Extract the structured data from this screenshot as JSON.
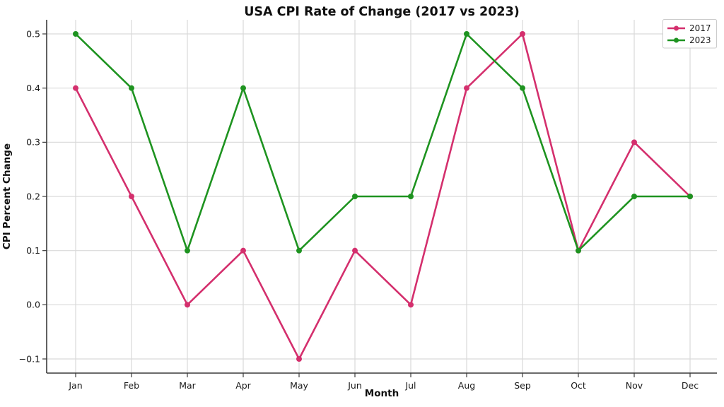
{
  "chart_data": {
    "type": "line",
    "title": "USA CPI Rate of Change (2017 vs 2023)",
    "xlabel": "Month",
    "ylabel": "CPI Percent Change",
    "categories": [
      "Jan",
      "Feb",
      "Mar",
      "Apr",
      "May",
      "Jun",
      "Jul",
      "Aug",
      "Sep",
      "Oct",
      "Nov",
      "Dec"
    ],
    "y_tick_values": [
      -0.1,
      0.0,
      0.1,
      0.2,
      0.3,
      0.4,
      0.5
    ],
    "y_tick_labels": [
      "−0.1",
      "0.0",
      "0.1",
      "0.2",
      "0.3",
      "0.4",
      "0.5"
    ],
    "ylim": [
      -0.126,
      0.526
    ],
    "grid": true,
    "legend_position": "upper right",
    "series": [
      {
        "name": "2017",
        "color": "#d42f6d",
        "values": [
          0.4,
          0.2,
          0.0,
          0.1,
          -0.1,
          0.1,
          0.0,
          0.4,
          0.5,
          0.1,
          0.3,
          0.2
        ]
      },
      {
        "name": "2023",
        "color": "#1e9320",
        "values": [
          0.5,
          0.4,
          0.1,
          0.4,
          0.1,
          0.2,
          0.2,
          0.5,
          0.4,
          0.1,
          0.2,
          0.2
        ]
      }
    ],
    "colors": {
      "background": "#ffffff",
      "grid": "#d9d9d9",
      "spine": "#3a3a3a",
      "text": "#1a1a1a",
      "legend_border": "#cccccc"
    }
  }
}
